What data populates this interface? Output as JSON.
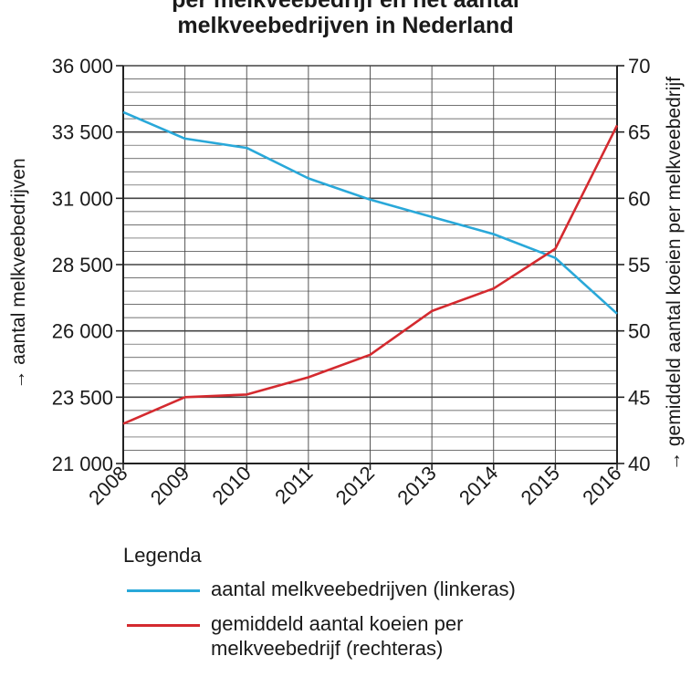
{
  "title": {
    "line1": "per melkveebedrijf en het aantal",
    "line2": "melkveebedrijven in Nederland"
  },
  "colors": {
    "series1": "#29a8d9",
    "series2": "#d42a2f",
    "grid": "#444444"
  },
  "legend": {
    "title": "Legenda",
    "items": [
      "aantal melkveebedrijven (linkeras)",
      "gemiddeld aantal koeien per",
      "melkveebedrijf (rechteras)"
    ]
  },
  "chart_data": {
    "type": "line",
    "x": [
      "2008",
      "2009",
      "2010",
      "2011",
      "2012",
      "2013",
      "2014",
      "2015",
      "2016"
    ],
    "y_left": {
      "label": "aantal melkveebedrijven",
      "ticks": [
        "21 000",
        "23 500",
        "26 000",
        "28 500",
        "31 000",
        "33 500",
        "36 000"
      ],
      "range": [
        21000,
        36000
      ]
    },
    "y_right": {
      "label": "gemiddeld aantal koeien per melkveebedrijf",
      "ticks": [
        "40",
        "45",
        "50",
        "55",
        "60",
        "65",
        "70"
      ],
      "range": [
        40,
        70
      ]
    },
    "series": [
      {
        "name": "aantal melkveebedrijven (linkeras)",
        "axis": "left",
        "values": [
          34250,
          33250,
          32900,
          31750,
          30950,
          30300,
          29650,
          28750,
          26650
        ]
      },
      {
        "name": "gemiddeld aantal koeien per melkveebedrijf (rechteras)",
        "axis": "right",
        "values": [
          43,
          45,
          45.2,
          46.5,
          48.2,
          51.5,
          53.2,
          56.2,
          65.5
        ]
      }
    ],
    "grid": true
  }
}
